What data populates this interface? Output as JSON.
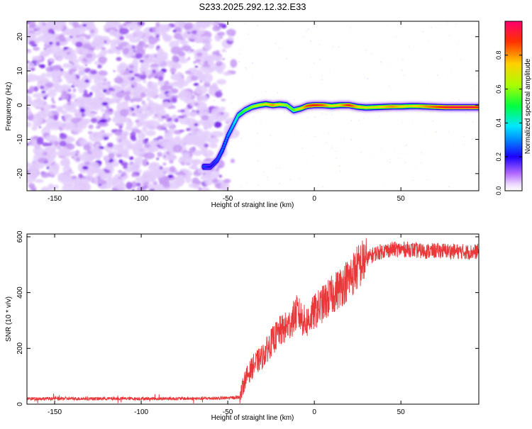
{
  "chart_data": [
    {
      "type": "heatmap",
      "title": "S233.2025.292.12.32.E33",
      "xlabel": "Height of straight line (km)",
      "ylabel": "Frequency (Hz)",
      "xlim": [
        -166,
        95
      ],
      "ylim": [
        -25,
        24.5
      ],
      "xticks": [
        -150,
        -100,
        -50,
        0,
        50
      ],
      "yticks": [
        -20,
        -10,
        0,
        10,
        20
      ],
      "colorbar": {
        "label": "Normalized spectral amplitude",
        "ticks": [
          0.0,
          0.2,
          0.4,
          0.6,
          0.8
        ],
        "range": [
          0,
          1
        ]
      },
      "noise_region_x": [
        -166,
        -48
      ],
      "ridge": {
        "x": [
          -64,
          -60,
          -56,
          -53,
          -50,
          -47,
          -44,
          -40,
          -36,
          -32,
          -28,
          -24,
          -20,
          -16,
          -12,
          -8,
          -4,
          0,
          5,
          10,
          15,
          20,
          25,
          30,
          35,
          40,
          45,
          50,
          55,
          60,
          65,
          70,
          75,
          80,
          85,
          90,
          95
        ],
        "y": [
          -18,
          -18,
          -16,
          -13,
          -9,
          -6,
          -3,
          -1.5,
          -0.5,
          0,
          0.3,
          0,
          0.2,
          0,
          -1.5,
          -1,
          -0.2,
          0,
          0,
          -0.2,
          0,
          0,
          -0.5,
          -0.7,
          -0.6,
          -0.5,
          -0.4,
          -0.4,
          -0.3,
          -0.3,
          -0.4,
          -0.5,
          -0.6,
          -0.6,
          -0.6,
          -0.6,
          -0.6
        ],
        "amplitude": [
          0.25,
          0.2,
          0.25,
          0.28,
          0.3,
          0.35,
          0.45,
          0.55,
          0.6,
          0.65,
          0.7,
          0.8,
          0.7,
          0.6,
          0.55,
          0.7,
          0.85,
          0.9,
          0.85,
          0.7,
          0.75,
          0.9,
          0.75,
          0.7,
          0.7,
          0.75,
          0.8,
          0.75,
          0.7,
          0.75,
          0.8,
          0.85,
          0.9,
          0.95,
          0.95,
          0.95,
          0.9
        ]
      }
    },
    {
      "type": "line",
      "xlabel": "Height of straight line (km)",
      "ylabel": "SNR (10 * v/v)",
      "xlim": [
        -166,
        95
      ],
      "ylim": [
        0,
        610
      ],
      "xticks": [
        -150,
        -100,
        -50,
        0,
        50
      ],
      "yticks": [
        0,
        200,
        400,
        600
      ],
      "series_color": "#e8383a",
      "series": {
        "x": [
          -166,
          -150,
          -130,
          -110,
          -90,
          -70,
          -50,
          -43,
          -40,
          -35,
          -30,
          -25,
          -20,
          -15,
          -10,
          -5,
          0,
          5,
          10,
          15,
          20,
          25,
          30,
          35,
          40,
          45,
          50,
          55,
          60,
          65,
          70,
          75,
          80,
          85,
          90,
          95
        ],
        "y": [
          20,
          20,
          20,
          20,
          20,
          20,
          22,
          25,
          90,
          140,
          170,
          220,
          260,
          280,
          330,
          290,
          330,
          360,
          390,
          420,
          450,
          490,
          520,
          540,
          550,
          555,
          555,
          555,
          550,
          548,
          550,
          550,
          548,
          547,
          545,
          548
        ]
      }
    }
  ]
}
